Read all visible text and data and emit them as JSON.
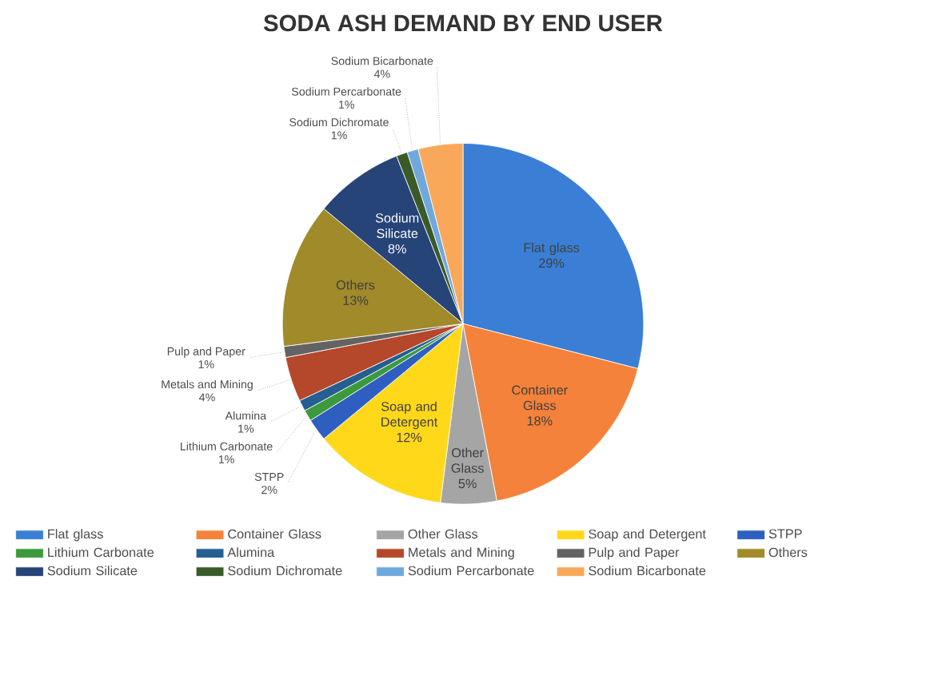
{
  "chart_data": {
    "type": "pie",
    "title": "SODA ASH DEMAND BY END USER",
    "categories": [
      "Flat glass",
      "Container Glass",
      "Other Glass",
      "Soap and Detergent",
      "STPP",
      "Lithium Carbonate",
      "Alumina",
      "Metals and Mining",
      "Pulp and Paper",
      "Others",
      "Sodium Silicate",
      "Sodium Dichromate",
      "Sodium Percarbonate",
      "Sodium Bicarbonate"
    ],
    "values": [
      29,
      18,
      5,
      12,
      2,
      1,
      1,
      4,
      1,
      13,
      8,
      1,
      1,
      4
    ],
    "value_labels": [
      "29%",
      "18%",
      "5%",
      "12%",
      "2%",
      "1%",
      "1%",
      "4%",
      "1%",
      "13%",
      "8%",
      "1%",
      "1%",
      "4%"
    ],
    "colors": [
      "#3a7fd5",
      "#f5823a",
      "#a5a5a5",
      "#ffd81a",
      "#2e5fc0",
      "#3c9a3c",
      "#255e91",
      "#b5472a",
      "#636363",
      "#a08a2a",
      "#264478",
      "#3a5a2a",
      "#6fa8dc",
      "#f9a85a"
    ],
    "legend": "bottom"
  }
}
